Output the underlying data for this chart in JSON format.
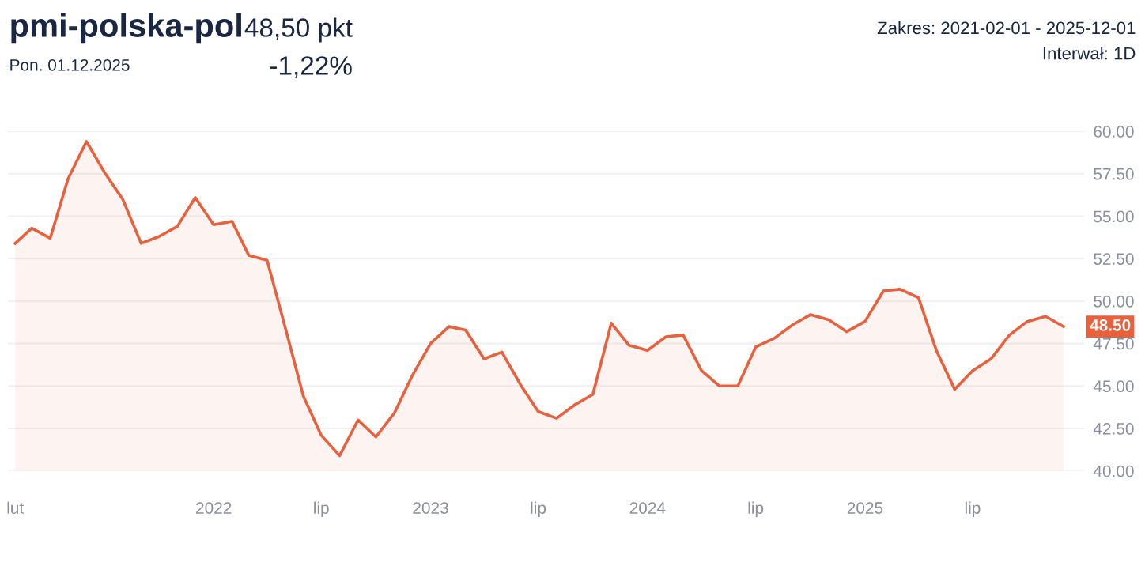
{
  "chart_data": {
    "type": "area",
    "title": "pmi-polska-pol",
    "subtitle": "Pon. 01.12.2025",
    "annotations": [
      "48,50 pkt",
      "-1,22%",
      "Zakres: 2021-02-01 - 2025-12-01",
      "Interwał: 1D",
      {
        "text": "48.50",
        "x": "2025-12",
        "y": 48.5
      }
    ],
    "x": [
      "2021-02",
      "2021-03",
      "2021-04",
      "2021-05",
      "2021-06",
      "2021-07",
      "2021-08",
      "2021-09",
      "2021-10",
      "2021-11",
      "2021-12",
      "2022-01",
      "2022-02",
      "2022-03",
      "2022-04",
      "2022-05",
      "2022-06",
      "2022-07",
      "2022-08",
      "2022-09",
      "2022-10",
      "2022-11",
      "2022-12",
      "2023-01",
      "2023-02",
      "2023-03",
      "2023-04",
      "2023-05",
      "2023-06",
      "2023-07",
      "2023-08",
      "2023-09",
      "2023-10",
      "2023-11",
      "2023-12",
      "2024-01",
      "2024-02",
      "2024-03",
      "2024-04",
      "2024-05",
      "2024-06",
      "2024-07",
      "2024-08",
      "2024-09",
      "2024-10",
      "2024-11",
      "2024-12",
      "2025-01",
      "2025-02",
      "2025-03",
      "2025-04",
      "2025-05",
      "2025-06",
      "2025-07",
      "2025-08",
      "2025-09",
      "2025-10",
      "2025-11",
      "2025-12"
    ],
    "series": [
      {
        "color": "#e8603c",
        "values": [
          53.4,
          54.3,
          53.7,
          57.2,
          59.4,
          57.6,
          56.0,
          53.4,
          53.8,
          54.4,
          56.1,
          54.5,
          54.7,
          52.7,
          52.4,
          48.5,
          44.4,
          42.1,
          40.9,
          43.0,
          42.0,
          43.4,
          45.6,
          47.5,
          48.5,
          48.3,
          46.6,
          47.0,
          45.1,
          43.5,
          43.1,
          43.9,
          44.5,
          48.7,
          47.4,
          47.1,
          47.9,
          48.0,
          45.9,
          45.0,
          45.0,
          47.3,
          47.8,
          48.6,
          49.2,
          48.9,
          48.2,
          48.8,
          50.6,
          50.7,
          50.2,
          47.1,
          44.8,
          45.9,
          46.6,
          48.0,
          48.8,
          49.1,
          48.5
        ]
      }
    ],
    "xlim": [
      "2021-01-20",
      "2026-01-05"
    ],
    "xticks": [
      {
        "value": "2021-02",
        "label": "lut"
      },
      {
        "value": "2022-01",
        "label": "2022"
      },
      {
        "value": "2022-07",
        "label": "lip"
      },
      {
        "value": "2023-01",
        "label": "2023"
      },
      {
        "value": "2023-07",
        "label": "lip"
      },
      {
        "value": "2024-01",
        "label": "2024"
      },
      {
        "value": "2024-07",
        "label": "lip"
      },
      {
        "value": "2025-01",
        "label": "2025"
      },
      {
        "value": "2025-07",
        "label": "lip"
      }
    ],
    "ylim": [
      40,
      60
    ],
    "yticks": [
      {
        "value": 40,
        "label": "40.00"
      },
      {
        "value": 42.5,
        "label": "42.50"
      },
      {
        "value": 45,
        "label": "45.00"
      },
      {
        "value": 47.5,
        "label": "47.50"
      },
      {
        "value": 50,
        "label": "50.00"
      },
      {
        "value": 52.5,
        "label": "52.50"
      },
      {
        "value": 55,
        "label": "55.00"
      },
      {
        "value": 57.5,
        "label": "57.50"
      },
      {
        "value": 60,
        "label": "60.00"
      }
    ],
    "grid": "y",
    "legend": false
  }
}
